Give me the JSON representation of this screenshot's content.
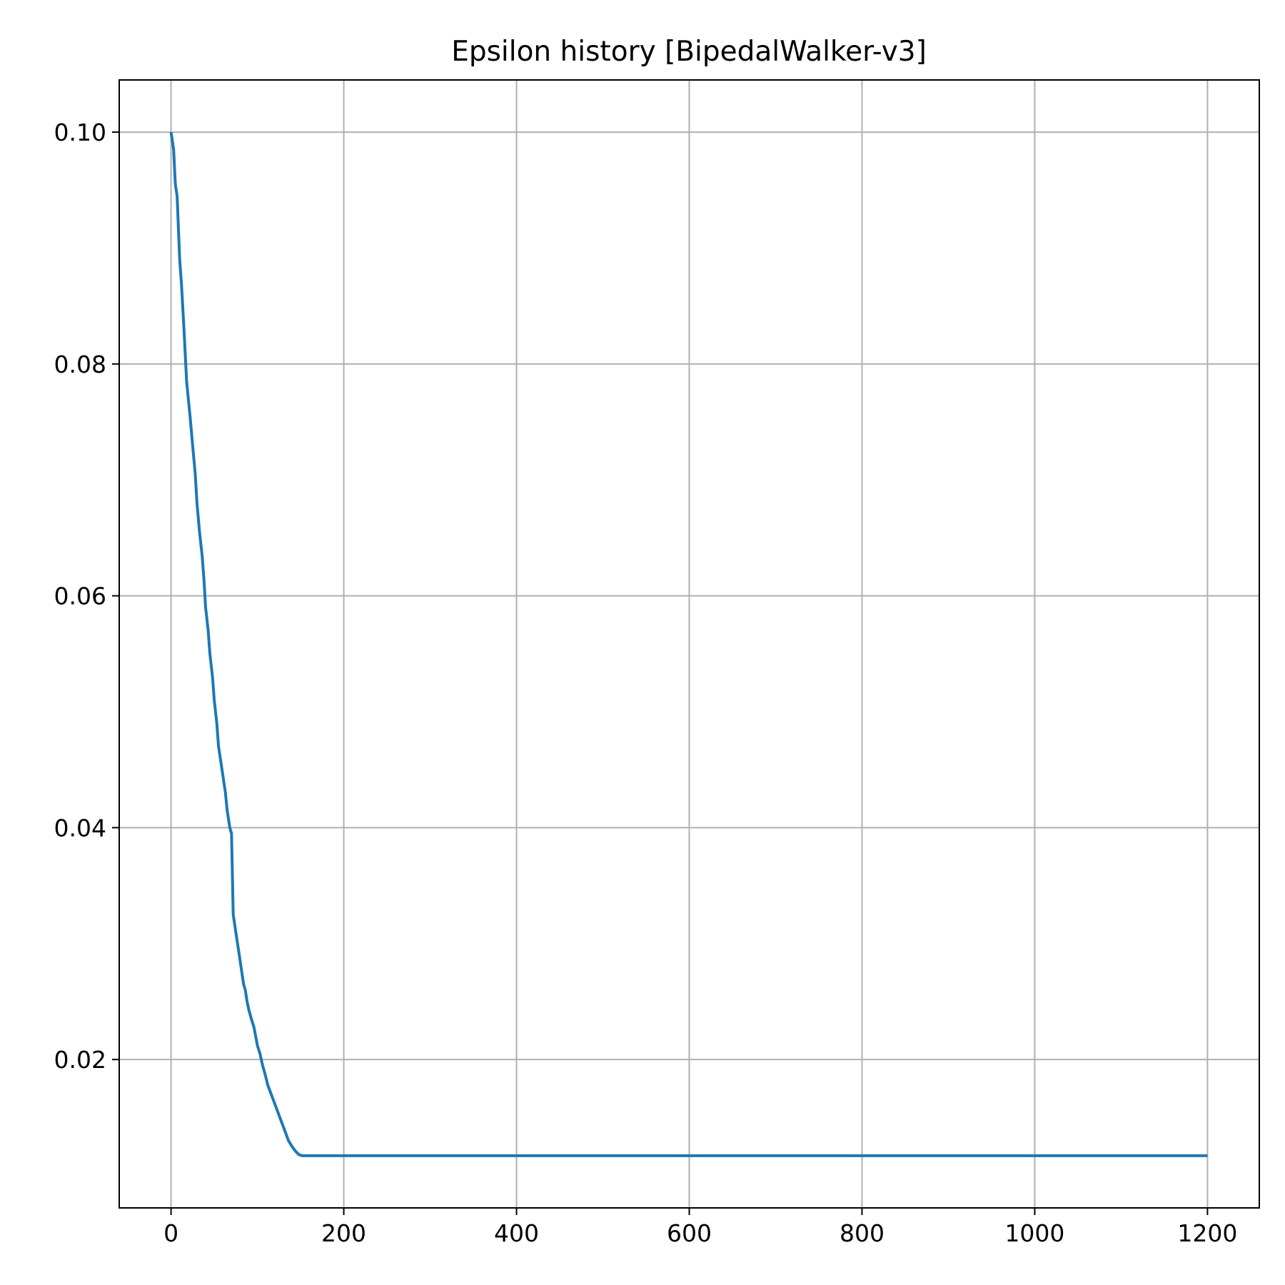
{
  "chart_data": {
    "type": "line",
    "title": "Epsilon history [BipedalWalker-v3]",
    "xlabel": "",
    "ylabel": "",
    "xlim": [
      -60,
      1260
    ],
    "ylim": [
      0.0072,
      0.1045
    ],
    "xticks": [
      0,
      200,
      400,
      600,
      800,
      1000,
      1200
    ],
    "xtick_labels": [
      "0",
      "200",
      "400",
      "600",
      "800",
      "1000",
      "1200"
    ],
    "yticks": [
      0.02,
      0.04,
      0.06,
      0.08,
      0.1
    ],
    "ytick_labels": [
      "0.02",
      "0.04",
      "0.06",
      "0.08",
      "0.10"
    ],
    "grid": true,
    "series": [
      {
        "color": "#1f77b4",
        "x": [
          0,
          3,
          5,
          7,
          10,
          12,
          15,
          18,
          22,
          25,
          28,
          30,
          33,
          36,
          38,
          40,
          43,
          45,
          48,
          50,
          53,
          55,
          58,
          60,
          63,
          65,
          68,
          70,
          72,
          74,
          76,
          78,
          80,
          81,
          82,
          84,
          86,
          88,
          90,
          93,
          96,
          98,
          100,
          103,
          106,
          109,
          112,
          115,
          118,
          121,
          124,
          127,
          130,
          133,
          136,
          140,
          144,
          148,
          152,
          156,
          160,
          164,
          168,
          172,
          176,
          180,
          184,
          188,
          192,
          196,
          200,
          205,
          210,
          215,
          218,
          300,
          400,
          500,
          600,
          700,
          800,
          900,
          1000,
          1100,
          1200
        ],
        "y": [
          0.1,
          0.0985,
          0.0955,
          0.0945,
          0.089,
          0.087,
          0.083,
          0.0785,
          0.0755,
          0.073,
          0.0705,
          0.068,
          0.0655,
          0.0635,
          0.0615,
          0.059,
          0.057,
          0.055,
          0.053,
          0.051,
          0.049,
          0.047,
          0.0455,
          0.0445,
          0.043,
          0.0415,
          0.04,
          0.0395,
          0.0325,
          0.0315,
          0.0305,
          0.0295,
          0.0285,
          0.028,
          0.0275,
          0.0265,
          0.026,
          0.025,
          0.0243,
          0.0235,
          0.0228,
          0.022,
          0.0212,
          0.0205,
          0.0195,
          0.0187,
          0.0178,
          0.0172,
          0.0166,
          0.016,
          0.0154,
          0.0148,
          0.0142,
          0.0136,
          0.013,
          0.0125,
          0.0121,
          0.0118,
          0.0117,
          0.0117,
          0.0117,
          0.0117,
          0.0117,
          0.0117,
          0.0117,
          0.0117,
          0.0117,
          0.0117,
          0.0117,
          0.0117,
          0.0117,
          0.0117,
          0.0117,
          0.0117,
          0.0117,
          0.0117,
          0.0117,
          0.0117,
          0.0117,
          0.0117,
          0.0117,
          0.0117,
          0.0117,
          0.0117,
          0.0117
        ]
      }
    ]
  }
}
